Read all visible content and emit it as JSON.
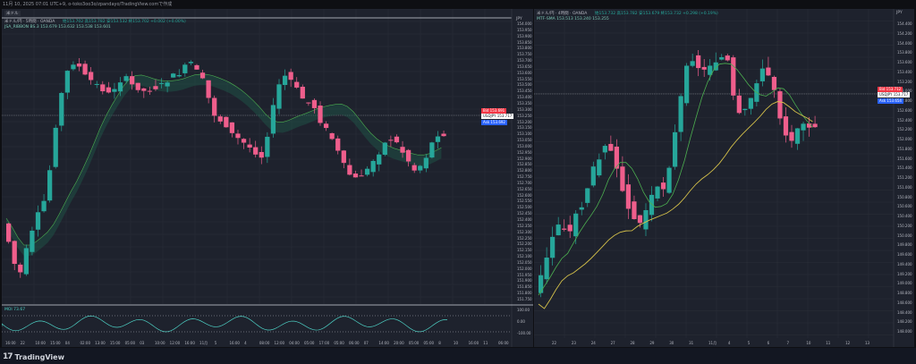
{
  "topbar": {
    "text": "11月 10, 2025 07:01 UTC+9, o-toko3oo3o/zpandayo/TradingView.comで作成"
  },
  "left": {
    "title_chip": "米ドル",
    "symbol_line": "米ドル/円 · 5時間 · OANDA",
    "ohlc": "始153.702 高153.782 安153.532 終153.702 +0.002 (+0.00%)",
    "indicator_line": "JSA_RIBBON BS.3  153.679  153.632  153.538  153.601",
    "currency": "JPY",
    "osc_label": "MOI  73.67",
    "price_ticks": [
      "154.000",
      "153.950",
      "153.900",
      "153.850",
      "153.800",
      "153.750",
      "153.700",
      "153.650",
      "153.600",
      "153.550",
      "153.500",
      "153.450",
      "153.400",
      "153.350",
      "153.300",
      "153.250",
      "153.200",
      "153.150",
      "153.100",
      "153.050",
      "153.000",
      "152.950",
      "152.900",
      "152.850",
      "152.800",
      "152.750",
      "152.700",
      "152.650",
      "152.600",
      "152.550",
      "152.500",
      "152.450",
      "152.400",
      "152.350",
      "152.300",
      "152.250",
      "152.200",
      "152.150",
      "152.100",
      "152.050",
      "152.000",
      "151.950",
      "151.900",
      "151.850",
      "151.800",
      "151.750"
    ],
    "osc_ticks": [
      "100.00",
      "0.00",
      "-100.00"
    ],
    "time_ticks": [
      "16:00",
      "22",
      "10:00",
      "15:00",
      "04",
      "02:00",
      "13:00",
      "15:00",
      "05:00",
      "03",
      "10:00",
      "12:00",
      "16:00",
      "11月",
      "5",
      "16:00",
      "4",
      "08:00",
      "12:00",
      "04:00",
      "05:00",
      "17:00",
      "05:00",
      "06:00",
      "07",
      "14:00",
      "20:00",
      "05:00",
      "05:00",
      "8",
      "10",
      "16:00",
      "11",
      "06:00"
    ],
    "tags": [
      {
        "text": "Bid 153.691",
        "color": "#f23645"
      },
      {
        "text": "USDJPY 153.717",
        "color": "#ffffff",
        "fg": "#131722"
      },
      {
        "text": "Ask 153.692",
        "color": "#2962ff"
      }
    ]
  },
  "right": {
    "symbol_line": "米ドル/円 · 4時間 · OANDA",
    "ohlc": "始153.732 高153.782 安153.679 終153.732 +0.298 (+0.19%)",
    "ma_line": "MTF-SMA  153.513  153.240  153.255",
    "currency": "JPY",
    "price_ticks": [
      "154.400",
      "154.200",
      "154.000",
      "153.800",
      "153.600",
      "153.400",
      "153.200",
      "153.000",
      "152.800",
      "152.600",
      "152.400",
      "152.200",
      "152.000",
      "151.800",
      "151.600",
      "151.400",
      "151.200",
      "151.000",
      "150.800",
      "150.600",
      "150.400",
      "150.200",
      "150.000",
      "149.800",
      "149.600",
      "149.400",
      "149.200",
      "149.000",
      "148.800",
      "148.600",
      "148.400",
      "148.200",
      "148.000"
    ],
    "time_ticks": [
      "22",
      "23",
      "24",
      "27",
      "28",
      "29",
      "30",
      "31",
      "11月",
      "4",
      "5",
      "6",
      "7",
      "10",
      "11",
      "12",
      "13"
    ],
    "tags": [
      {
        "text": "Bid 153.712",
        "color": "#f23645"
      },
      {
        "text": "USDJPY 153.717",
        "color": "#ffffff",
        "fg": "#131722"
      },
      {
        "text": "Ask 153.654",
        "color": "#2962ff"
      }
    ]
  },
  "brand": {
    "name": "TradingView",
    "mark": "17"
  },
  "colors": {
    "up": "#26a69a",
    "down": "#ef5e8c",
    "bg": "#1e222d",
    "grid": "#2a2e39",
    "ribbon": "#1f5b4c",
    "sma_fast": "#4caf50",
    "sma_slow": "#d4c04a",
    "osc": "#4dd0c4"
  }
}
